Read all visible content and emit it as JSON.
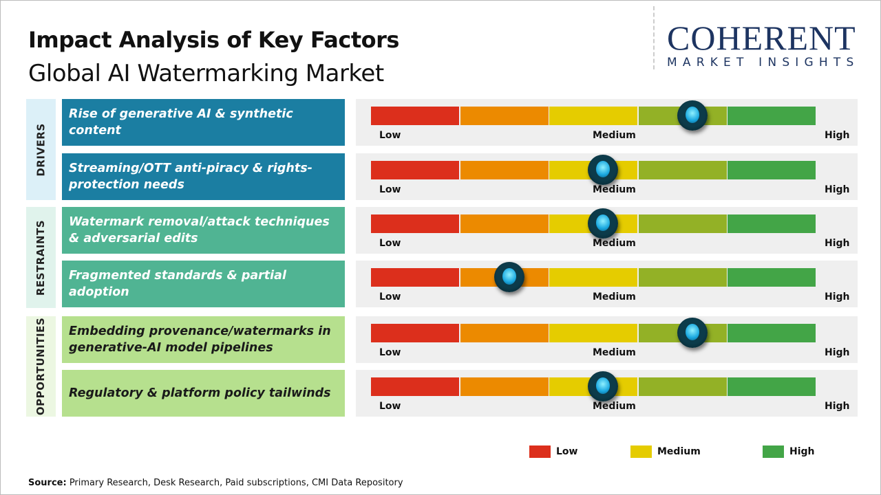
{
  "header": {
    "title": "Impact Analysis of Key Factors",
    "subtitle": "Global AI Watermarking Market"
  },
  "logo": {
    "name": "COHERENT",
    "tagline": "MARKET INSIGHTS"
  },
  "scale": {
    "low": "Low",
    "medium": "Medium",
    "high": "High",
    "segment_colors": [
      "#dc2f1c",
      "#ec8a00",
      "#e5cc00",
      "#93b126",
      "#43a547"
    ]
  },
  "categories": [
    {
      "label": "DRIVERS",
      "label_bg": "#dcf0f8",
      "row_bg": "#1b7ea2",
      "text_color": "#ffffff"
    },
    {
      "label": "RESTRAINTS",
      "label_bg": "#e0f3ec",
      "row_bg": "#50b493",
      "text_color": "#ffffff"
    },
    {
      "label": "OPPORTUNITIES",
      "label_bg": "#ecf7e2",
      "row_bg": "#b6e08e",
      "text_color": "#1a1a1a"
    }
  ],
  "chart_data": {
    "type": "gauge",
    "scale": [
      "Low",
      "Medium",
      "High"
    ],
    "range": [
      0,
      1
    ],
    "factors": [
      {
        "category": "DRIVERS",
        "label": "Rise of generative AI & synthetic content",
        "impact": 0.72
      },
      {
        "category": "DRIVERS",
        "label": "Streaming/OTT anti-piracy & rights-protection needs",
        "impact": 0.52
      },
      {
        "category": "RESTRAINTS",
        "label": "Watermark removal/attack techniques & adversarial edits",
        "impact": 0.52
      },
      {
        "category": "RESTRAINTS",
        "label": "Fragmented standards & partial adoption",
        "impact": 0.31
      },
      {
        "category": "OPPORTUNITIES",
        "label": "Embedding provenance/watermarks in generative-AI model pipelines",
        "impact": 0.72
      },
      {
        "category": "OPPORTUNITIES",
        "label": "Regulatory & platform policy tailwinds",
        "impact": 0.52
      }
    ]
  },
  "legend": [
    {
      "label": "Low",
      "color": "#dc2f1c"
    },
    {
      "label": "Medium",
      "color": "#e5cc00"
    },
    {
      "label": "High",
      "color": "#43a547"
    }
  ],
  "source": {
    "label": "Source:",
    "text": " Primary Research, Desk Research, Paid subscriptions, CMI Data Repository"
  }
}
